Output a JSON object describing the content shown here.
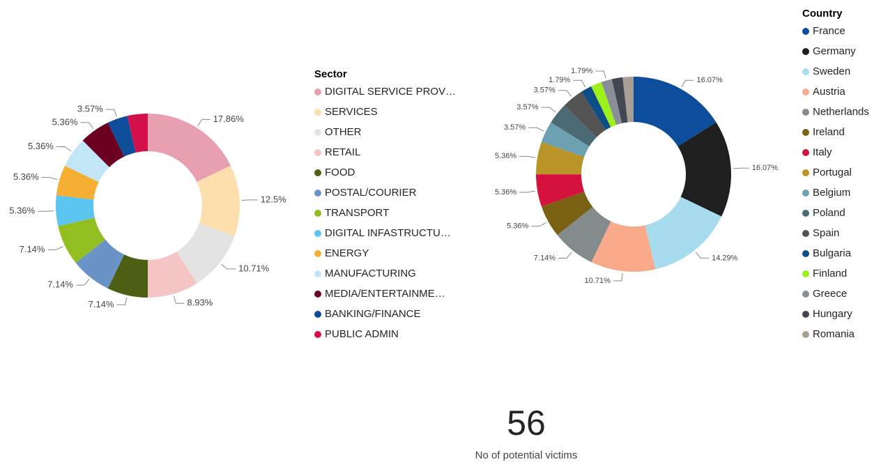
{
  "chart_data": [
    {
      "type": "donut",
      "legend_title": "Sector",
      "categories": [
        "DIGITAL SERVICE PROV…",
        "SERVICES",
        "OTHER",
        "RETAIL",
        "FOOD",
        "POSTAL/COURIER",
        "TRANSPORT",
        "DIGITAL INFASTRUCTU…",
        "ENERGY",
        "MANUFACTURING",
        "MEDIA/ENTERTAINME…",
        "BANKING/FINANCE",
        "PUBLIC ADMIN"
      ],
      "values": [
        17.86,
        12.5,
        10.71,
        8.93,
        7.14,
        7.14,
        7.14,
        5.36,
        5.36,
        5.36,
        5.36,
        3.57,
        3.57
      ],
      "value_labels": [
        "17.86%",
        "12.5%",
        "10.71%",
        "8.93%",
        "7.14%",
        "7.14%",
        "7.14%",
        "5.36%",
        "5.36%",
        "5.36%",
        "5.36%",
        "3.57%",
        null
      ],
      "colors": [
        "#E8A0B0",
        "#FDDFAE",
        "#E3E3E3",
        "#F5C4C4",
        "#4D5F13",
        "#6A93C8",
        "#92BE22",
        "#5BC5F0",
        "#F6AF33",
        "#C3E6F7",
        "#6C0022",
        "#0E4D9A",
        "#D4104A"
      ]
    },
    {
      "type": "donut",
      "legend_title": "Country",
      "categories": [
        "France",
        "Germany",
        "Sweden",
        "Austria",
        "Netherlands",
        "Ireland",
        "Italy",
        "Portugal",
        "Belgium",
        "Poland",
        "Spain",
        "Bulgaria",
        "Finland",
        "Greece",
        "Hungary",
        "Romania"
      ],
      "values": [
        16.07,
        16.07,
        14.29,
        10.71,
        7.14,
        5.36,
        5.36,
        5.36,
        3.57,
        3.57,
        3.57,
        1.79,
        1.79,
        1.79,
        1.79,
        1.79
      ],
      "value_labels": [
        "16.07%",
        "16.07%",
        "14.29%",
        "10.71%",
        "7.14%",
        "5.36%",
        "5.36%",
        "5.36%",
        "3.57%",
        "3.57%",
        "3.57%",
        "1.79%",
        null,
        "1.79%",
        null,
        null
      ],
      "colors": [
        "#0D4E9C",
        "#1F1F1F",
        "#A6DCEE",
        "#F9AA8A",
        "#838B8D",
        "#7B6113",
        "#D5113E",
        "#B99528",
        "#6CA1B1",
        "#4A6A74",
        "#545454",
        "#0D4E86",
        "#9CF01B",
        "#8A8E98",
        "#43474F",
        "#A8A095"
      ]
    }
  ],
  "card": {
    "value": "56",
    "label": "No of potential victims"
  }
}
